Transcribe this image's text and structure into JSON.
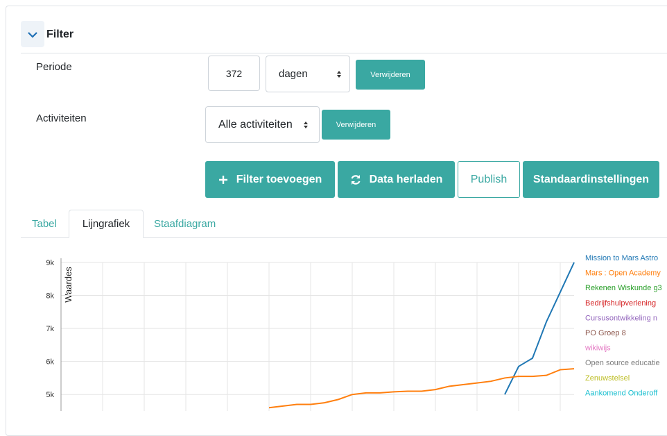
{
  "filter": {
    "title": "Filter",
    "periode": {
      "label": "Periode",
      "input": "372",
      "select": "dagen",
      "button": "Verwijderen"
    },
    "activiteiten": {
      "label": "Activiteiten",
      "select": "Alle activiteiten",
      "button": "Verwijderen"
    },
    "actions": [
      "Filter toevoegen",
      "Data herladen",
      "Publish",
      "Standaardinstellingen"
    ]
  },
  "tabs": {
    "items": [
      "Tabel",
      "Lijngrafiek",
      "Staafdiagram"
    ],
    "active": "Lijngrafiek"
  },
  "chart_data": {
    "type": "line",
    "ylabel": "Waardes",
    "categories": [
      null,
      null,
      null,
      null,
      null,
      null,
      null,
      null,
      null,
      null,
      null,
      null,
      null,
      null,
      null,
      null,
      null,
      null,
      null,
      null,
      null,
      null,
      null,
      null,
      null,
      null,
      null,
      null,
      null,
      null,
      null,
      null,
      null,
      null,
      null,
      null,
      null,
      null
    ],
    "ylim": [
      4500,
      9000
    ],
    "yticks": [
      {
        "value": 5000,
        "label": "5k"
      },
      {
        "value": 6000,
        "label": "6k"
      },
      {
        "value": 7000,
        "label": "7k"
      },
      {
        "value": 8000,
        "label": "8k"
      },
      {
        "value": 9000,
        "label": "9k"
      }
    ],
    "grid": true,
    "series": [
      {
        "name": "Mission to Mars Astro",
        "color": "#1f77b4",
        "values": [
          null,
          null,
          null,
          null,
          null,
          null,
          null,
          null,
          null,
          null,
          null,
          null,
          null,
          null,
          null,
          null,
          null,
          null,
          null,
          null,
          null,
          null,
          null,
          null,
          null,
          null,
          null,
          null,
          null,
          null,
          null,
          null,
          5000,
          5850,
          6100,
          7200,
          8100,
          9000
        ]
      },
      {
        "name": "Mars : Open Academy",
        "color": "#ff7f0e",
        "values": [
          null,
          null,
          null,
          null,
          null,
          null,
          null,
          null,
          null,
          null,
          null,
          null,
          null,
          null,
          null,
          4600,
          4650,
          4700,
          4700,
          4750,
          4850,
          5000,
          5050,
          5050,
          5080,
          5100,
          5100,
          5150,
          5250,
          5300,
          5350,
          5400,
          5500,
          5550,
          5550,
          5580,
          5750,
          5780
        ]
      },
      {
        "name": "Rekenen Wiskunde g3",
        "color": "#2ca02c",
        "values": [
          null,
          null,
          null,
          null,
          null,
          null,
          null,
          null,
          null,
          null,
          null,
          null,
          null,
          null,
          null,
          null,
          null,
          null,
          null,
          null,
          null,
          null,
          null,
          null,
          null,
          null,
          null,
          null,
          null,
          null,
          null,
          null,
          null,
          null,
          null,
          null,
          null,
          null
        ]
      },
      {
        "name": "Bedrijfshulpverlening",
        "color": "#d62728",
        "values": [
          null,
          null,
          null,
          null,
          null,
          null,
          null,
          null,
          null,
          null,
          null,
          null,
          null,
          null,
          null,
          null,
          null,
          null,
          null,
          null,
          null,
          null,
          null,
          null,
          null,
          null,
          null,
          null,
          null,
          null,
          null,
          null,
          null,
          null,
          null,
          null,
          null,
          null
        ]
      },
      {
        "name": "Cursusontwikkeling n",
        "color": "#9467bd",
        "values": [
          null,
          null,
          null,
          null,
          null,
          null,
          null,
          null,
          null,
          null,
          null,
          null,
          null,
          null,
          null,
          null,
          null,
          null,
          null,
          null,
          null,
          null,
          null,
          null,
          null,
          null,
          null,
          null,
          null,
          null,
          null,
          null,
          null,
          null,
          null,
          null,
          null,
          null
        ]
      },
      {
        "name": "PO Groep 8",
        "color": "#8c564b",
        "values": [
          null,
          null,
          null,
          null,
          null,
          null,
          null,
          null,
          null,
          null,
          null,
          null,
          null,
          null,
          null,
          null,
          null,
          null,
          null,
          null,
          null,
          null,
          null,
          null,
          null,
          null,
          null,
          null,
          null,
          null,
          null,
          null,
          null,
          null,
          null,
          null,
          null,
          null
        ]
      },
      {
        "name": "wikiwijs",
        "color": "#e377c2",
        "values": [
          null,
          null,
          null,
          null,
          null,
          null,
          null,
          null,
          null,
          null,
          null,
          null,
          null,
          null,
          null,
          null,
          null,
          null,
          null,
          null,
          null,
          null,
          null,
          null,
          null,
          null,
          null,
          null,
          null,
          null,
          null,
          null,
          null,
          null,
          null,
          null,
          null,
          null
        ]
      },
      {
        "name": "Open source educatie",
        "color": "#7f7f7f",
        "values": [
          null,
          null,
          null,
          null,
          null,
          null,
          null,
          null,
          null,
          null,
          null,
          null,
          null,
          null,
          null,
          null,
          null,
          null,
          null,
          null,
          null,
          null,
          null,
          null,
          null,
          null,
          null,
          null,
          null,
          null,
          null,
          null,
          null,
          null,
          null,
          null,
          null,
          null
        ]
      },
      {
        "name": "Zenuwstelsel",
        "color": "#bcbd22",
        "values": [
          null,
          null,
          null,
          null,
          null,
          null,
          null,
          null,
          null,
          null,
          null,
          null,
          null,
          null,
          null,
          null,
          null,
          null,
          null,
          null,
          null,
          null,
          null,
          null,
          null,
          null,
          null,
          null,
          null,
          null,
          null,
          null,
          null,
          null,
          null,
          null,
          null,
          null
        ]
      },
      {
        "name": "Aankomend Onderoff",
        "color": "#17becf",
        "values": [
          null,
          null,
          null,
          null,
          null,
          null,
          null,
          null,
          null,
          null,
          null,
          null,
          null,
          null,
          null,
          null,
          null,
          null,
          null,
          null,
          null,
          null,
          null,
          null,
          null,
          null,
          null,
          null,
          null,
          null,
          null,
          null,
          null,
          null,
          null,
          null,
          null,
          null
        ]
      }
    ]
  }
}
